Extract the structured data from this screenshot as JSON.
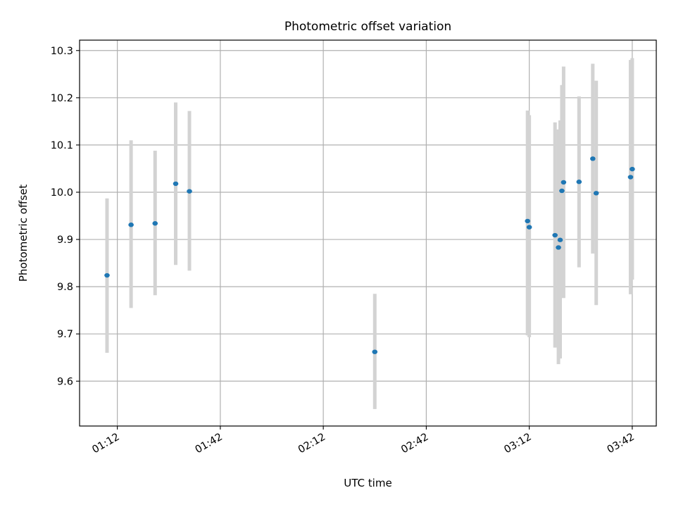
{
  "chart_data": {
    "type": "scatter",
    "title": "Photometric offset variation",
    "xlabel": "UTC time",
    "ylabel": "Photometric offset",
    "x_format": "HH:MM",
    "xlim": [
      "01:01:00",
      "03:49:00"
    ],
    "ylim": [
      9.505,
      10.322
    ],
    "x_ticks": [
      "01:12",
      "01:42",
      "02:12",
      "02:42",
      "03:12",
      "03:42"
    ],
    "y_ticks": [
      9.6,
      9.7,
      9.8,
      9.9,
      10.0,
      10.1,
      10.2,
      10.3
    ],
    "y_tick_labels": [
      "9.6",
      "9.7",
      "9.8",
      "9.9",
      "10.0",
      "10.1",
      "10.2",
      "10.3"
    ],
    "grid": true,
    "colors": {
      "points": "#1f77b4",
      "error_bars": "#d3d3d3",
      "grid": "#b0b0b0"
    },
    "series": [
      {
        "points": [
          {
            "x": "01:09:00",
            "y": 9.824,
            "ymin": 9.66,
            "ymax": 9.987
          },
          {
            "x": "01:16:00",
            "y": 9.931,
            "ymin": 9.755,
            "ymax": 10.11
          },
          {
            "x": "01:23:00",
            "y": 9.934,
            "ymin": 9.782,
            "ymax": 10.088
          },
          {
            "x": "01:29:00",
            "y": 10.018,
            "ymin": 9.846,
            "ymax": 10.19
          },
          {
            "x": "01:33:00",
            "y": 10.002,
            "ymin": 9.834,
            "ymax": 10.172
          },
          {
            "x": "02:27:00",
            "y": 9.662,
            "ymin": 9.541,
            "ymax": 9.785
          },
          {
            "x": "03:11:30",
            "y": 9.939,
            "ymin": 9.697,
            "ymax": 10.173
          },
          {
            "x": "03:12:00",
            "y": 9.926,
            "ymin": 9.693,
            "ymax": 10.163
          },
          {
            "x": "03:19:30",
            "y": 9.909,
            "ymin": 9.671,
            "ymax": 10.148
          },
          {
            "x": "03:20:30",
            "y": 9.883,
            "ymin": 9.636,
            "ymax": 10.133
          },
          {
            "x": "03:21:00",
            "y": 9.899,
            "ymin": 9.648,
            "ymax": 10.152
          },
          {
            "x": "03:21:30",
            "y": 10.003,
            "ymin": 9.777,
            "ymax": 10.227
          },
          {
            "x": "03:22:00",
            "y": 10.021,
            "ymin": 9.776,
            "ymax": 10.266
          },
          {
            "x": "03:26:30",
            "y": 10.022,
            "ymin": 9.841,
            "ymax": 10.203
          },
          {
            "x": "03:30:30",
            "y": 10.071,
            "ymin": 9.87,
            "ymax": 10.272
          },
          {
            "x": "03:31:30",
            "y": 9.998,
            "ymin": 9.761,
            "ymax": 10.236
          },
          {
            "x": "03:41:30",
            "y": 10.032,
            "ymin": 9.784,
            "ymax": 10.28
          },
          {
            "x": "03:42:00",
            "y": 10.049,
            "ymin": 9.815,
            "ymax": 10.284
          }
        ]
      }
    ]
  }
}
